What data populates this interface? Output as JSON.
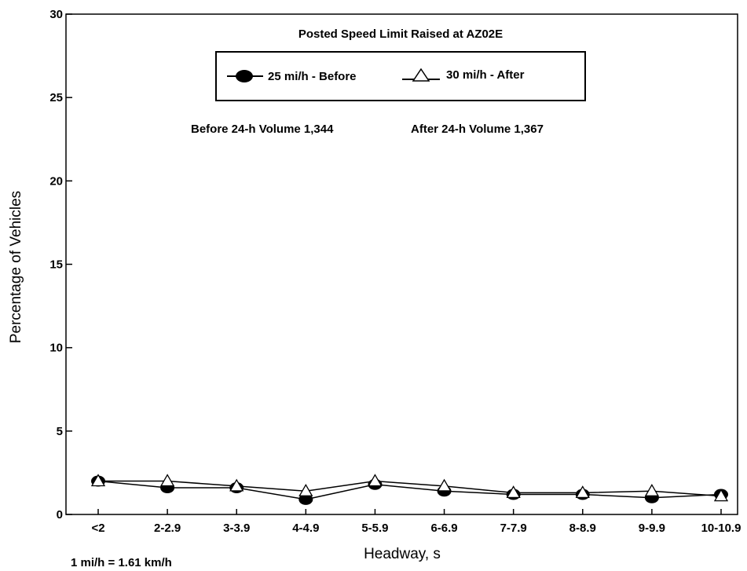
{
  "chart_data": {
    "type": "line",
    "title": "Posted Speed Limit Raised at AZ02E",
    "subtitle_before": "Before 24-h Volume 1,344",
    "subtitle_after": "After 24-h Volume 1,367",
    "xlabel": "Headway, s",
    "ylabel": "Percentage of Vehicles",
    "note": "1 mi/h = 1.61 km/h",
    "ylim": [
      0,
      30
    ],
    "yticks": [
      "0",
      "5",
      "10",
      "15",
      "20",
      "25",
      "30"
    ],
    "grid": false,
    "legend_position": "top-center",
    "categories": [
      "<2",
      "2-2.9",
      "3-3.9",
      "4-4.9",
      "5-5.9",
      "6-6.9",
      "7-7.9",
      "8-8.9",
      "9-9.9",
      "10-10.9"
    ],
    "series": [
      {
        "name": "25 mi/h - Before",
        "marker": "circle",
        "color": "#000000",
        "values": [
          2.0,
          1.6,
          1.6,
          0.9,
          1.8,
          1.4,
          1.2,
          1.2,
          1.0,
          1.2
        ]
      },
      {
        "name": "30 mi/h - After",
        "marker": "triangle",
        "color": "#000000",
        "values": [
          2.0,
          2.0,
          1.7,
          1.4,
          2.0,
          1.7,
          1.3,
          1.3,
          1.4,
          1.1
        ]
      }
    ]
  }
}
